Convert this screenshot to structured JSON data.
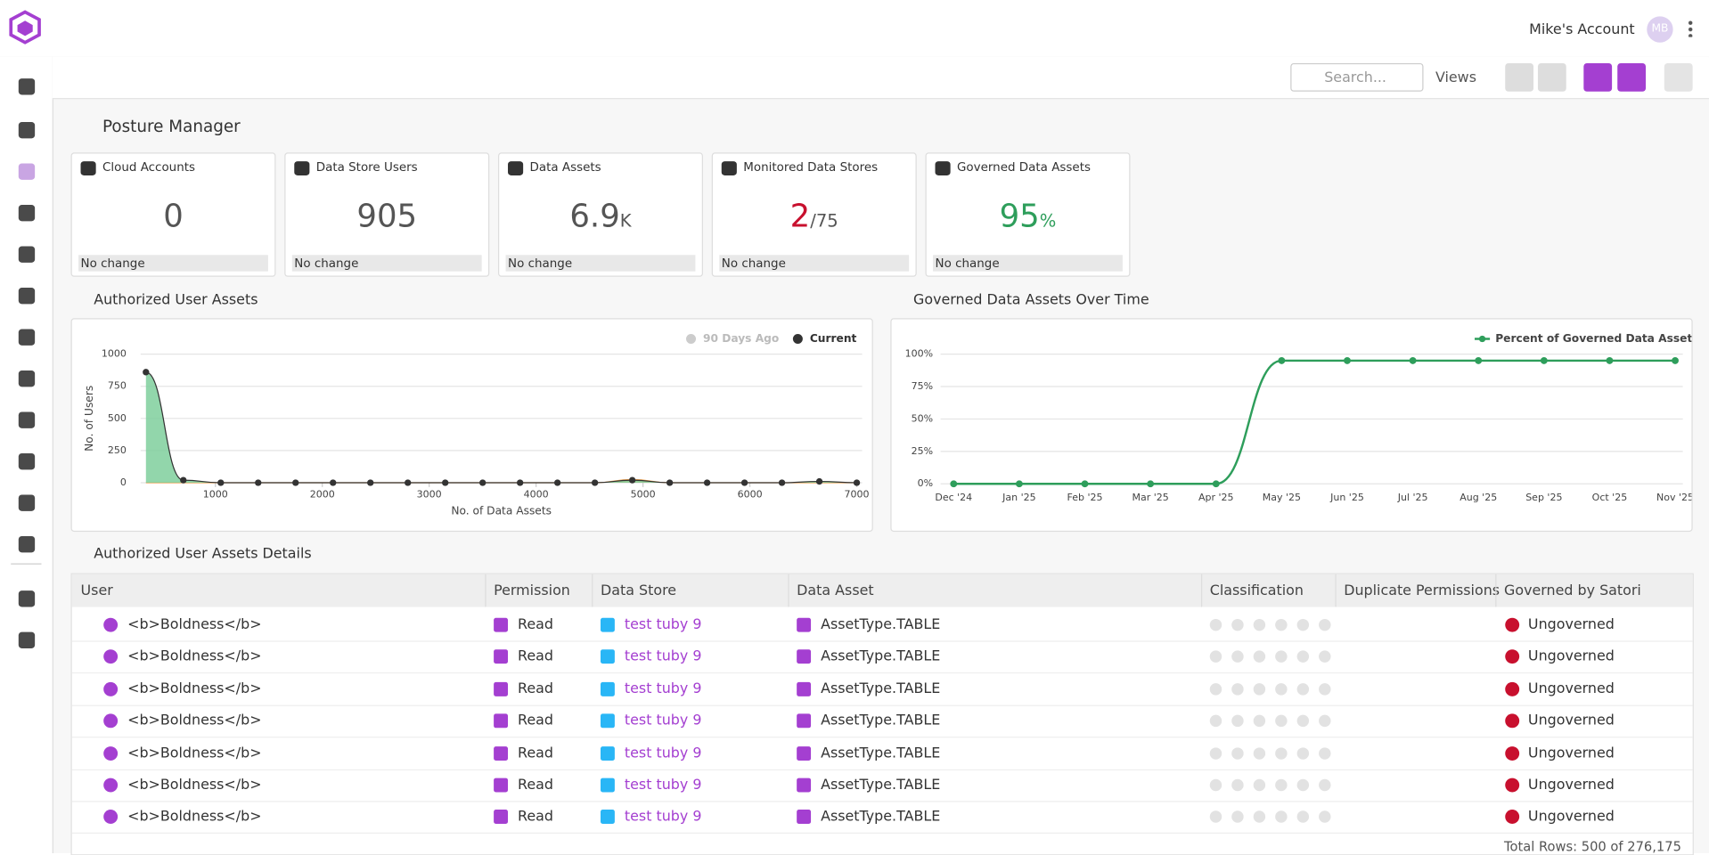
{
  "header": {
    "account": "Mike's Account",
    "avatar": "MB"
  },
  "toolbar": {
    "search_placeholder": "Search...",
    "views": "Views"
  },
  "page_title": "Posture Manager",
  "cards": [
    {
      "title": "Cloud Accounts",
      "value": 0,
      "color": "#555555",
      "change": "No change"
    },
    {
      "title": "Data Store Users",
      "value": 905,
      "color": "#555555",
      "change": "No change"
    },
    {
      "title": "Data Assets",
      "value": 6.9,
      "suffix": "K",
      "color": "#555555",
      "change": "No change"
    },
    {
      "title": "Monitored Data Stores",
      "value": 2,
      "suffix": "/75",
      "color": "#c8102e",
      "change": "No change"
    },
    {
      "title": "Governed Data Assets",
      "value": 95,
      "suffix": "%",
      "color": "#2e9e5b",
      "change": "No change"
    }
  ],
  "chart_data": [
    {
      "type": "area",
      "title": "Authorized User Assets",
      "x_label": "No. of Data Assets",
      "y_label": "No. of Users",
      "x": [
        350,
        700,
        1050,
        1400,
        1750,
        2100,
        2450,
        2800,
        3150,
        3500,
        3850,
        4200,
        4550,
        4900,
        5250,
        5600,
        5950,
        6300,
        6650,
        7000
      ],
      "series": [
        {
          "name": "90 Days Ago",
          "color": "#f0a04b",
          "inactive": true,
          "values": [
            0,
            0,
            0,
            0,
            0,
            0,
            0,
            0,
            0,
            0,
            0,
            0,
            0,
            25,
            0,
            0,
            0,
            0,
            0,
            0
          ]
        },
        {
          "name": "Current",
          "color": "#333333",
          "fill": "#7fcf9c",
          "values": [
            860,
            20,
            0,
            0,
            0,
            0,
            0,
            0,
            0,
            0,
            0,
            0,
            0,
            20,
            0,
            0,
            0,
            0,
            10,
            0
          ]
        }
      ],
      "xlim": [
        300,
        7050
      ],
      "xticks": [
        1000,
        2000,
        3000,
        4000,
        5000,
        6000,
        7000
      ],
      "ylim": [
        0,
        1000
      ],
      "yticks": [
        0,
        250,
        500,
        750,
        1000
      ],
      "grid": true
    },
    {
      "type": "line",
      "title": "Governed Data Assets Over Time",
      "categories": [
        "Dec '24",
        "Jan '25",
        "Feb '25",
        "Mar '25",
        "Apr '25",
        "May '25",
        "Jun '25",
        "Jul '25",
        "Aug '25",
        "Sep '25",
        "Oct '25",
        "Nov '25"
      ],
      "series": [
        {
          "name": "Percent of Governed Data Assets",
          "color": "#2e9e5b",
          "values": [
            0,
            0,
            0,
            0,
            0,
            95,
            95,
            95,
            95,
            95,
            95,
            95
          ]
        }
      ],
      "ylim": [
        0,
        100
      ],
      "yticks": [
        {
          "value": 0,
          "label": "0%"
        },
        {
          "value": 25,
          "label": "25%"
        },
        {
          "value": 50,
          "label": "50%"
        },
        {
          "value": 75,
          "label": "75%"
        },
        {
          "value": 100,
          "label": "100%"
        }
      ],
      "grid": true
    }
  ],
  "table": {
    "title": "Authorized User Assets Details",
    "columns": [
      "User",
      "Permission",
      "Data Store",
      "Data Asset",
      "Classification",
      "Duplicate Permissions",
      "Governed by Satori"
    ],
    "rows": [
      {
        "user": "<b>Boldness</b>",
        "permission": "Read",
        "data_store": "test tuby 9",
        "data_asset": "AssetType.TABLE",
        "governed": "Ungoverned"
      },
      {
        "user": "<b>Boldness</b>",
        "permission": "Read",
        "data_store": "test tuby 9",
        "data_asset": "AssetType.TABLE",
        "governed": "Ungoverned"
      },
      {
        "user": "<b>Boldness</b>",
        "permission": "Read",
        "data_store": "test tuby 9",
        "data_asset": "AssetType.TABLE",
        "governed": "Ungoverned"
      },
      {
        "user": "<b>Boldness</b>",
        "permission": "Read",
        "data_store": "test tuby 9",
        "data_asset": "AssetType.TABLE",
        "governed": "Ungoverned"
      },
      {
        "user": "<b>Boldness</b>",
        "permission": "Read",
        "data_store": "test tuby 9",
        "data_asset": "AssetType.TABLE",
        "governed": "Ungoverned"
      },
      {
        "user": "<b>Boldness</b>",
        "permission": "Read",
        "data_store": "test tuby 9",
        "data_asset": "AssetType.TABLE",
        "governed": "Ungoverned"
      },
      {
        "user": "<b>Boldness</b>",
        "permission": "Read",
        "data_store": "test tuby 9",
        "data_asset": "AssetType.TABLE",
        "governed": "Ungoverned"
      }
    ],
    "total": "Total Rows: 500 of 276,175"
  }
}
